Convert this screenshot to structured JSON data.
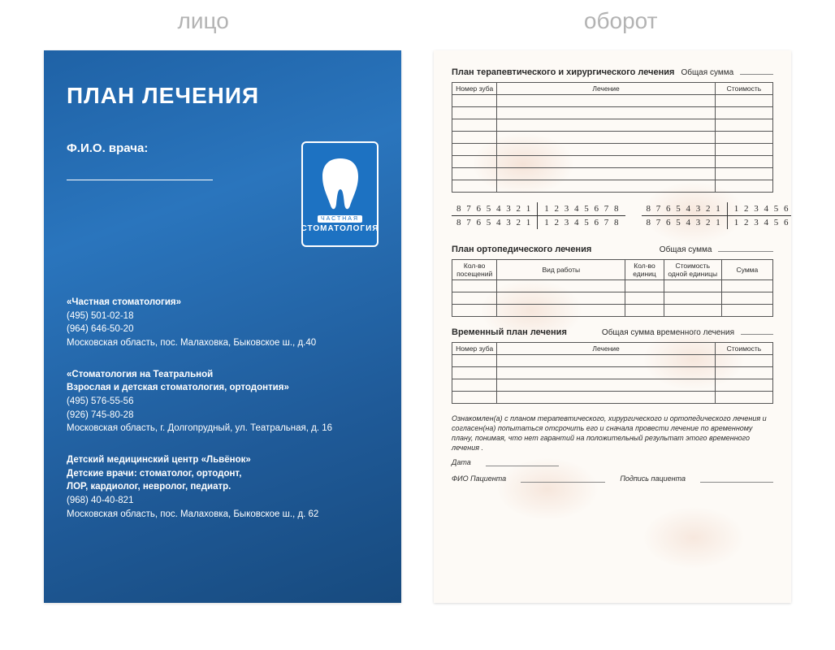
{
  "labels": {
    "front": "лицо",
    "back": "оборот"
  },
  "front": {
    "title": "ПЛАН ЛЕЧЕНИЯ",
    "doctor_label": "Ф.И.О. врача:",
    "logo": {
      "line1": "ЧАСТНАЯ",
      "line2": "СТОМАТОЛОГИЯ"
    },
    "blocks": [
      {
        "title": "«Частная стоматология»",
        "phones": [
          "(495) 501-02-18",
          "(964) 646-50-20"
        ],
        "addr": "Московская область, пос. Малаховка, Быковское ш., д.40"
      },
      {
        "title": "«Стоматология на Театральной\nВзрослая и детская стоматология, ортодонтия»",
        "phones": [
          "(495) 576-55-56",
          "(926) 745-80-28"
        ],
        "addr": "Московская область, г. Долгопрудный, ул. Театральная, д. 16"
      },
      {
        "title": "Детский медицинский центр «Львёнок»\nДетские врачи: стоматолог, ортодонт,\nЛОР, кардиолог, невролог, педиатр.",
        "phones": [
          "(968) 40-40-821"
        ],
        "addr": "Московская область, пос. Малаховка, Быковское ш., д. 62"
      }
    ],
    "colors": {
      "bg_from": "#1f62a6",
      "bg_to": "#174a7e",
      "text": "#ffffff"
    }
  },
  "back": {
    "section1": {
      "title": "План терапевтического и хирургического лечения",
      "total_label": "Общая сумма",
      "cols": [
        "Номер зуба",
        "Лечение",
        "Стоимость"
      ],
      "col_widths": [
        "14%",
        "68%",
        "18%"
      ],
      "rows": 8
    },
    "teeth": {
      "tl": "8 7 6 5 4 3 2 1",
      "tr": "1 2 3 4 5 6 7 8",
      "bl": "8 7 6 5 4 3 2 1",
      "br": "1 2 3 4 5 6 7 8"
    },
    "section2": {
      "title": "План ортопедического лечения",
      "total_label": "Общая сумма",
      "cols": [
        "Кол-во посещений",
        "Вид работы",
        "Кол-во единиц",
        "Стоимость одной единицы",
        "Сумма"
      ],
      "col_widths": [
        "14%",
        "40%",
        "12%",
        "18%",
        "16%"
      ],
      "rows": 3
    },
    "section3": {
      "title": "Временный план лечения",
      "total_label": "Общая сумма временного лечения",
      "cols": [
        "Номер зуба",
        "Лечение",
        "Стоимость"
      ],
      "col_widths": [
        "14%",
        "68%",
        "18%"
      ],
      "rows": 4
    },
    "disclaimer": "Ознакомлен(а) с планом терапевтического, хирургического и ортопедического лечения и согласен(на) попытаться отсрочить его и сначала провести лечение по временному плану, понимая, что нет гарантий на положительный результат этого временного лечения .",
    "date_label": "Дата",
    "patient_label": "ФИО Пациента",
    "sign_label": "Подпись пациента"
  }
}
